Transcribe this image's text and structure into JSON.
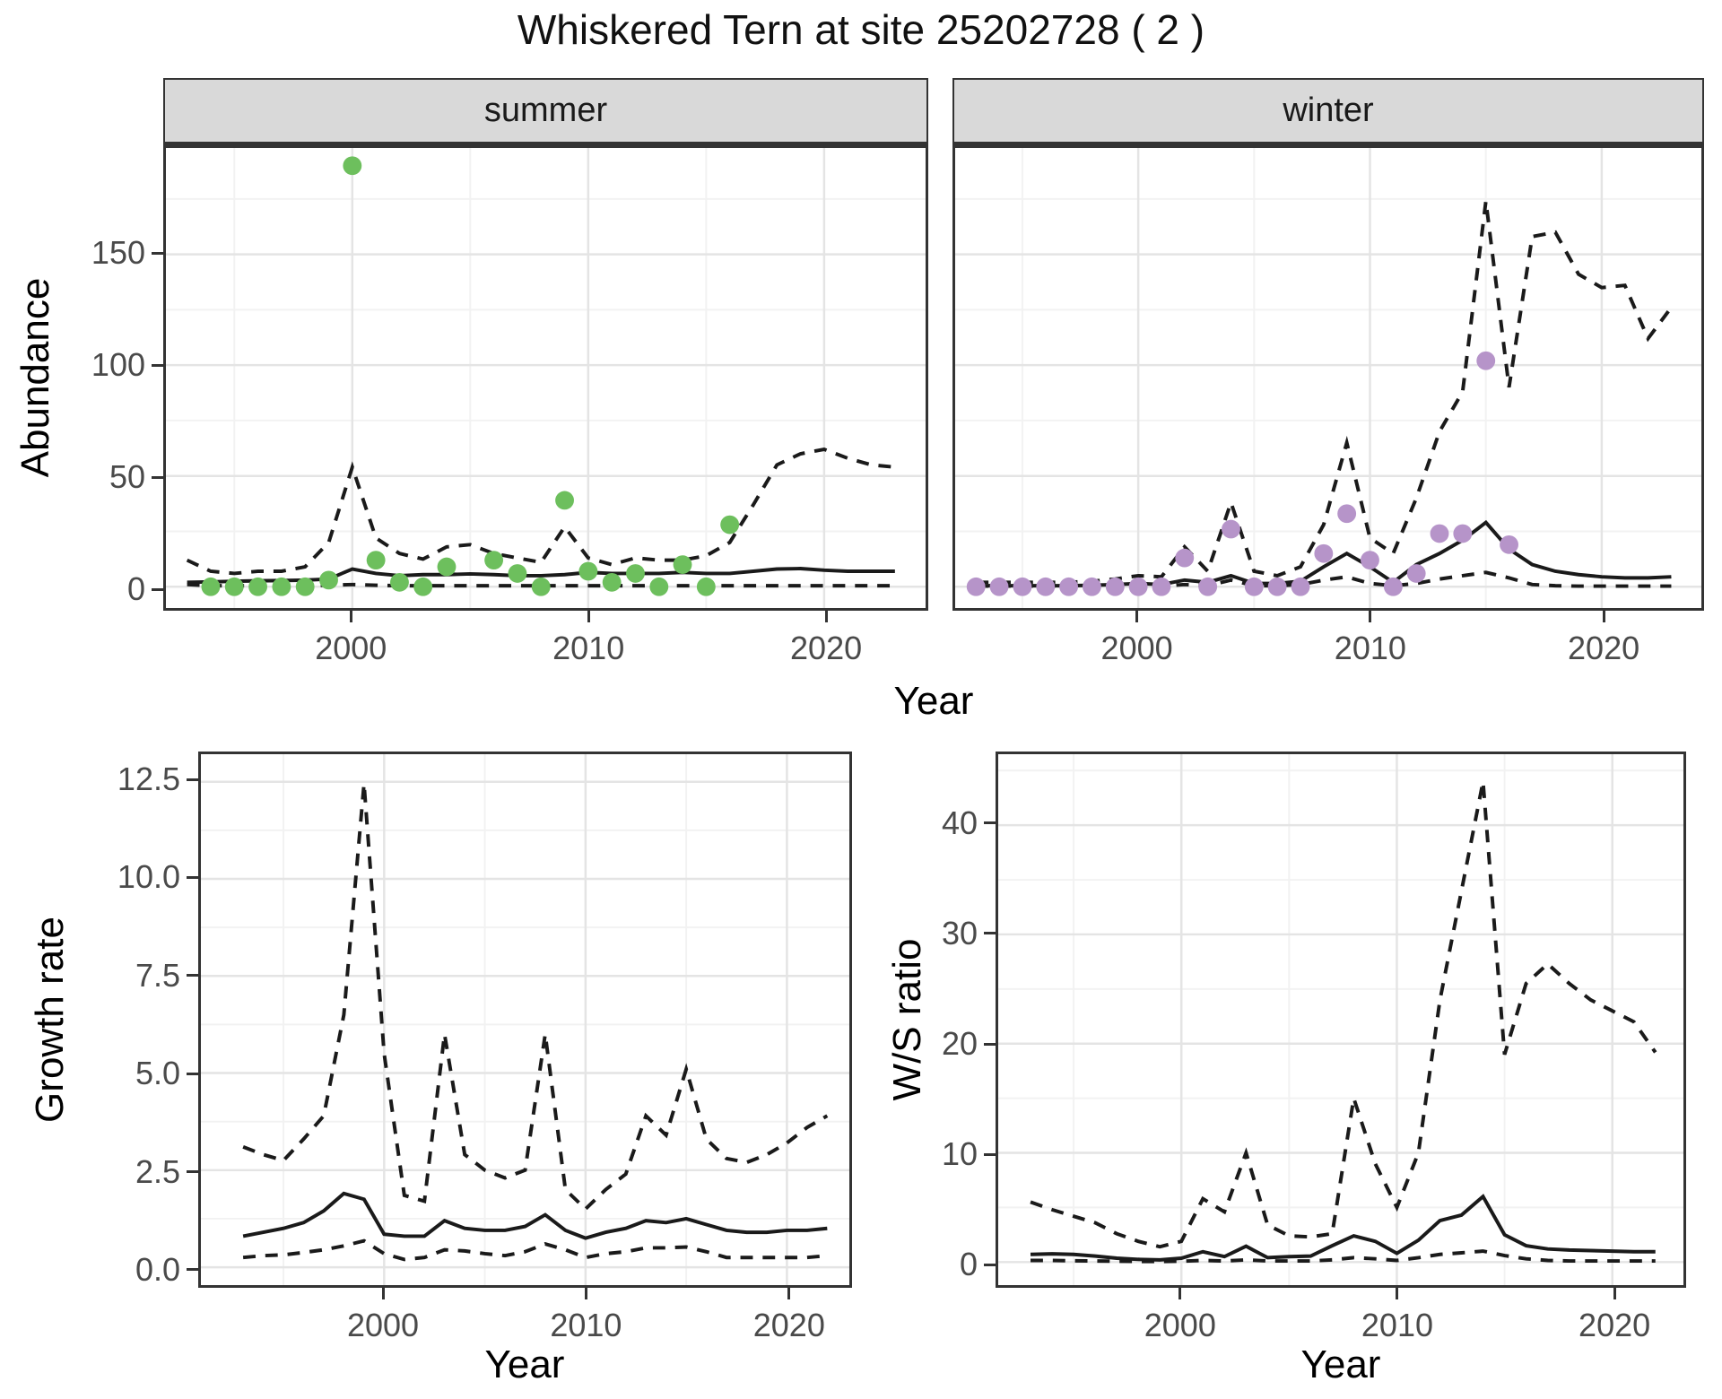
{
  "title": "Whiskered Tern at site 25202728 ( 2 )",
  "labels": {
    "ylabel_abundance": "Abundance",
    "ylabel_growth": "Growth rate",
    "ylabel_ws": "W/S ratio",
    "xlabel": "Year",
    "facet_summer": "summer",
    "facet_winter": "winter"
  },
  "colors": {
    "summer_points": "#6dbf5d",
    "winter_points": "#b694c9",
    "line": "#1a1a1a",
    "grid_major": "#e4e4e4",
    "grid_minor": "#f2f2f2",
    "strip_bg": "#d9d9d9",
    "panel_border": "#333333",
    "tick_text": "#4a4a4a"
  },
  "chart_data": [
    {
      "id": "abundance",
      "type": "line+scatter",
      "title": "Whiskered Tern at site 25202728 ( 2 )",
      "ylabel": "Abundance",
      "xlabel": "Year",
      "xlim": [
        1992.1,
        2024.3
      ],
      "ylim": [
        -9.6,
        198
      ],
      "xticks": [
        {
          "v": 2000,
          "label": "2000"
        },
        {
          "v": 2010,
          "label": "2010"
        },
        {
          "v": 2020,
          "label": "2020"
        }
      ],
      "xminor": [
        1995,
        2005,
        2015
      ],
      "yticks": [
        {
          "v": 0,
          "label": "0"
        },
        {
          "v": 50,
          "label": "50"
        },
        {
          "v": 100,
          "label": "100"
        },
        {
          "v": 150,
          "label": "150"
        }
      ],
      "yminor": [
        25,
        75,
        125,
        175
      ],
      "legend": "none",
      "grid": "on",
      "facets": [
        {
          "label": "summer",
          "lines": {
            "year_start": 1993,
            "mean": [
              2,
              2.2,
              2.5,
              2.7,
              2.8,
              3,
              3.5,
              8,
              6,
              5,
              5.5,
              5.5,
              5.8,
              5.5,
              5,
              5,
              5.5,
              6.5,
              6,
              6,
              6,
              6.5,
              6,
              6,
              7,
              8,
              8.2,
              7.5,
              7,
              7,
              7
            ],
            "upper": [
              12,
              7,
              6,
              7,
              7,
              9,
              20,
              54,
              22,
              15,
              12.5,
              18,
              19,
              15,
              13,
              11,
              27,
              13,
              10,
              13,
              12,
              12,
              14,
              20,
              37,
              55,
              60,
              62,
              58,
              55,
              54
            ],
            "lower": [
              1,
              0.5,
              0.5,
              0.5,
              0.5,
              0.5,
              0.7,
              1,
              0.7,
              0.5,
              0.5,
              0.5,
              0.5,
              0.5,
              0.5,
              0.5,
              0.5,
              0.5,
              0.5,
              0.5,
              0.5,
              0.5,
              0.5,
              0.5,
              0.5,
              0.5,
              0.5,
              0.5,
              0.5,
              0.5,
              0.5
            ]
          },
          "points": {
            "color_key": "summer_points",
            "years": [
              1994,
              1995,
              1996,
              1997,
              1998,
              1999,
              2000,
              2001,
              2002,
              2003,
              2004,
              2006,
              2007,
              2008,
              2009,
              2010,
              2011,
              2012,
              2013,
              2014,
              2015,
              2016
            ],
            "values": [
              0,
              0,
              0,
              0,
              0,
              3,
              190,
              12,
              2,
              0,
              9,
              12,
              6,
              0,
              39,
              7,
              2,
              6,
              0,
              10,
              0,
              28
            ]
          }
        },
        {
          "label": "winter",
          "lines": {
            "year_start": 1993,
            "mean": [
              0.5,
              0.5,
              0.5,
              0.5,
              0.5,
              0.7,
              1,
              1.5,
              1,
              3,
              2,
              5,
              1.5,
              1.5,
              2.5,
              9,
              15,
              9,
              2,
              10,
              15,
              21,
              29,
              17,
              10,
              7,
              5.5,
              4.5,
              4,
              4,
              4.5
            ],
            "upper": [
              2,
              2,
              2,
              2,
              2,
              2.5,
              3.5,
              5,
              4.5,
              18,
              7,
              38,
              7,
              5,
              9,
              28,
              65,
              22,
              15,
              40,
              70,
              88,
              174,
              90,
              158,
              160,
              141,
              135,
              136,
              112,
              126
            ],
            "lower": [
              0.3,
              0.3,
              0.3,
              0.3,
              0.3,
              0.3,
              0.3,
              0.3,
              0.3,
              1,
              0.5,
              3,
              0.5,
              0.5,
              1,
              3,
              4.5,
              1.5,
              0.5,
              1.5,
              3.5,
              5,
              6.5,
              4,
              1,
              0.5,
              0.3,
              0.3,
              0.3,
              0.3,
              0.3
            ]
          },
          "points": {
            "color_key": "winter_points",
            "years": [
              1993,
              1994,
              1995,
              1996,
              1997,
              1998,
              1999,
              2000,
              2001,
              2002,
              2003,
              2004,
              2005,
              2006,
              2007,
              2008,
              2009,
              2010,
              2011,
              2012,
              2013,
              2014,
              2015,
              2016
            ],
            "values": [
              0,
              0,
              0,
              0,
              0,
              0,
              0,
              0,
              0,
              13,
              0,
              26,
              0,
              0,
              0,
              15,
              33,
              12,
              0,
              6,
              24,
              24,
              102,
              19
            ]
          }
        }
      ]
    },
    {
      "id": "growth_rate",
      "type": "line",
      "ylabel": "Growth rate",
      "xlabel": "Year",
      "xlim": [
        1990.9,
        2023.1
      ],
      "ylim": [
        -0.46,
        13.21
      ],
      "xticks": [
        {
          "v": 2000,
          "label": "2000"
        },
        {
          "v": 2010,
          "label": "2010"
        },
        {
          "v": 2020,
          "label": "2020"
        }
      ],
      "xminor": [
        1995,
        2005,
        2015
      ],
      "yticks": [
        {
          "v": 0,
          "label": "0.0"
        },
        {
          "v": 2.5,
          "label": "2.5"
        },
        {
          "v": 5,
          "label": "5.0"
        },
        {
          "v": 7.5,
          "label": "7.5"
        },
        {
          "v": 10,
          "label": "10.0"
        },
        {
          "v": 12.5,
          "label": "12.5"
        }
      ],
      "yminor": [
        1.25,
        3.75,
        6.25,
        8.75,
        11.25
      ],
      "legend": "none",
      "grid": "on",
      "lines": {
        "year_start": 1993,
        "mean": [
          0.8,
          0.9,
          1.0,
          1.15,
          1.45,
          1.9,
          1.75,
          0.85,
          0.8,
          0.8,
          1.2,
          1.0,
          0.95,
          0.95,
          1.05,
          1.35,
          0.95,
          0.75,
          0.9,
          1.0,
          1.2,
          1.15,
          1.25,
          1.1,
          0.95,
          0.9,
          0.9,
          0.95,
          0.95,
          1.0
        ],
        "upper": [
          3.1,
          2.9,
          2.75,
          3.3,
          3.9,
          6.5,
          12.45,
          5.5,
          1.85,
          1.7,
          6.0,
          2.9,
          2.5,
          2.3,
          2.5,
          6.0,
          2.0,
          1.5,
          2.0,
          2.4,
          3.9,
          3.4,
          5.1,
          3.3,
          2.8,
          2.7,
          2.9,
          3.2,
          3.6,
          3.9
        ],
        "lower": [
          0.25,
          0.3,
          0.32,
          0.38,
          0.45,
          0.55,
          0.68,
          0.35,
          0.2,
          0.25,
          0.45,
          0.42,
          0.35,
          0.3,
          0.4,
          0.6,
          0.45,
          0.25,
          0.35,
          0.4,
          0.5,
          0.5,
          0.52,
          0.4,
          0.25,
          0.25,
          0.25,
          0.25,
          0.25,
          0.3
        ]
      }
    },
    {
      "id": "ws_ratio",
      "type": "line",
      "ylabel": "W/S ratio",
      "xlabel": "Year",
      "xlim": [
        1991.5,
        2023.3
      ],
      "ylim": [
        -2.11,
        46.5
      ],
      "xticks": [
        {
          "v": 2000,
          "label": "2000"
        },
        {
          "v": 2010,
          "label": "2010"
        },
        {
          "v": 2020,
          "label": "2020"
        }
      ],
      "xminor": [
        1995,
        2005,
        2015
      ],
      "yticks": [
        {
          "v": 0,
          "label": "0"
        },
        {
          "v": 10,
          "label": "10"
        },
        {
          "v": 20,
          "label": "20"
        },
        {
          "v": 30,
          "label": "30"
        },
        {
          "v": 40,
          "label": "40"
        }
      ],
      "yminor": [
        5,
        15,
        25,
        35,
        45
      ],
      "legend": "none",
      "grid": "on",
      "lines": {
        "year_start": 1993,
        "mean": [
          0.7,
          0.75,
          0.7,
          0.55,
          0.35,
          0.25,
          0.2,
          0.35,
          0.95,
          0.5,
          1.45,
          0.4,
          0.5,
          0.55,
          1.5,
          2.4,
          1.9,
          0.8,
          2.0,
          3.8,
          4.3,
          6.0,
          2.5,
          1.5,
          1.2,
          1.1,
          1.05,
          1.0,
          0.95,
          0.95
        ],
        "upper": [
          5.5,
          4.8,
          4.2,
          3.6,
          2.6,
          1.9,
          1.4,
          1.9,
          5.8,
          4.6,
          10.0,
          3.4,
          2.4,
          2.3,
          2.6,
          15.0,
          9.0,
          5.0,
          10.0,
          24.0,
          34.0,
          44.0,
          19.0,
          25.5,
          27.3,
          25.5,
          24.0,
          23.0,
          22.0,
          19.2
        ],
        "lower": [
          0.15,
          0.15,
          0.12,
          0.1,
          0.08,
          0.05,
          0.05,
          0.08,
          0.15,
          0.1,
          0.2,
          0.1,
          0.1,
          0.1,
          0.2,
          0.4,
          0.3,
          0.15,
          0.4,
          0.7,
          0.85,
          1.0,
          0.6,
          0.3,
          0.15,
          0.1,
          0.1,
          0.1,
          0.1,
          0.1
        ]
      }
    }
  ]
}
